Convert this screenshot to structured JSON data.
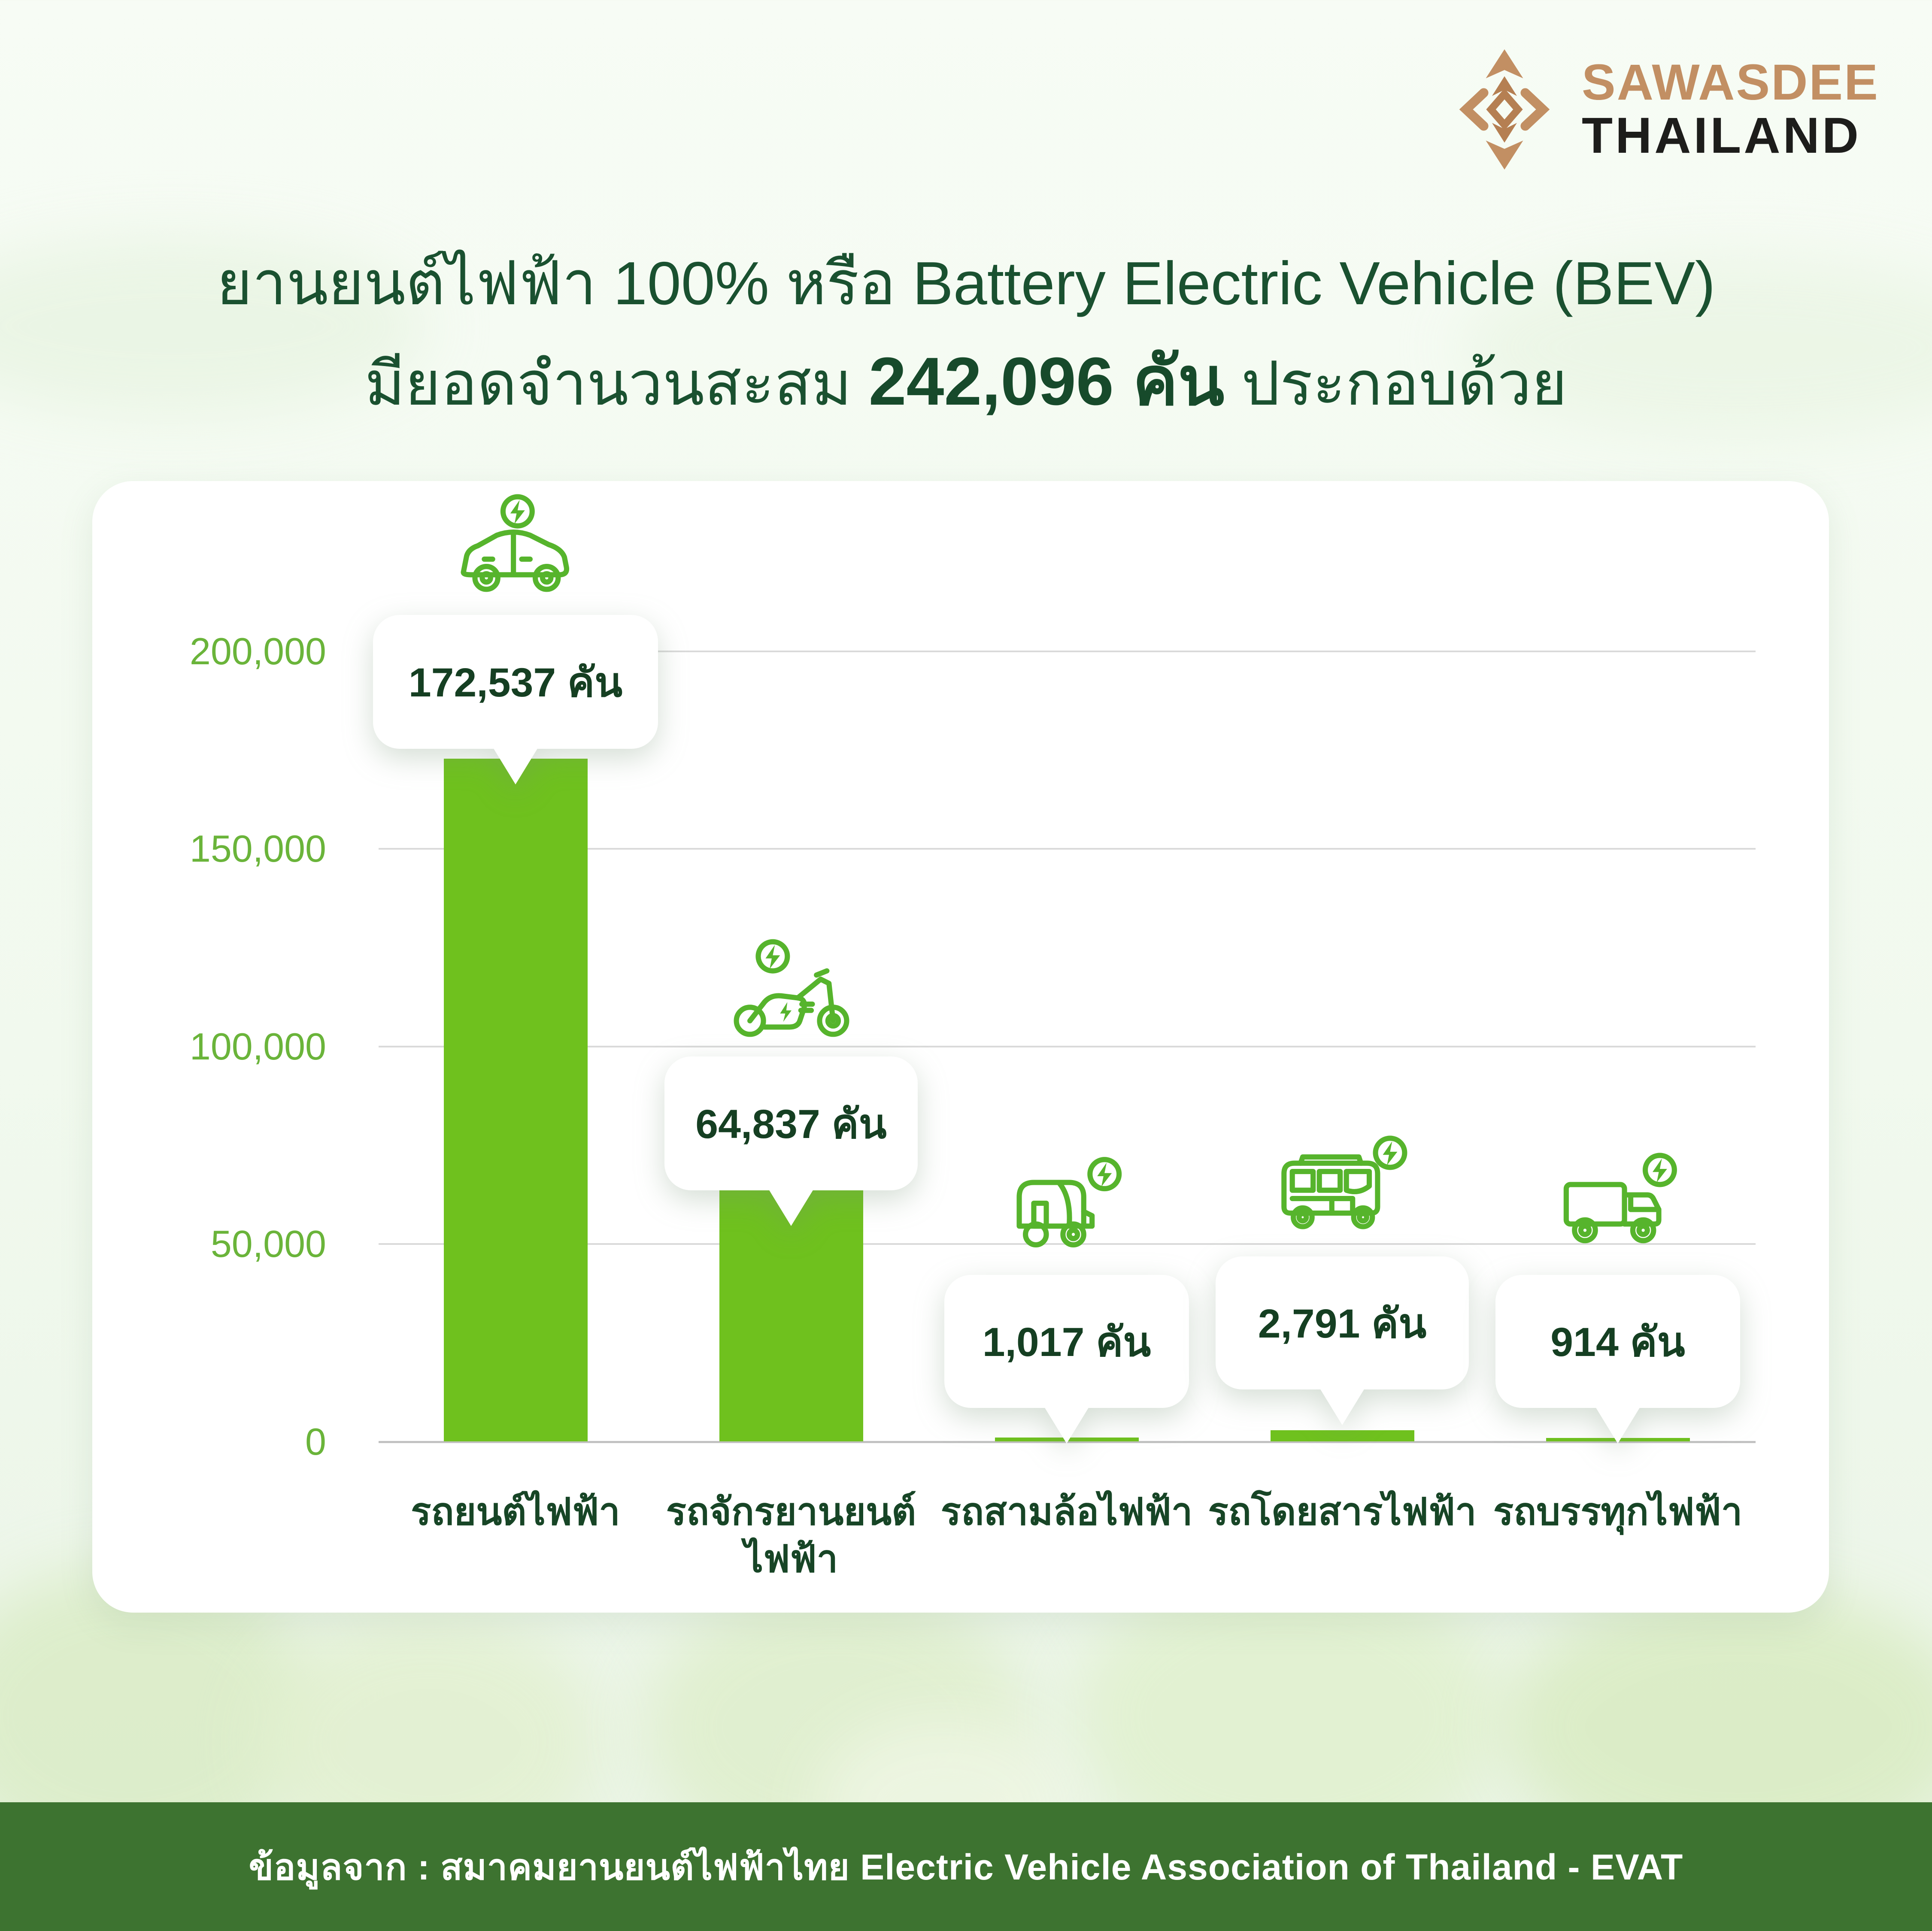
{
  "logo": {
    "brand_top": "SAWASDEE",
    "brand_bottom": "THAILAND"
  },
  "title": {
    "line1": "ยานยนต์ไฟฟ้า 100% หรือ Battery Electric Vehicle (BEV)",
    "line2_prefix": "มียอดจำนวนสะสม ",
    "line2_highlight": "242,096 คัน",
    "line2_suffix": " ประกอบด้วย"
  },
  "footer": {
    "source": "ข้อมูลจาก : สมาคมยานยนต์ไฟฟ้าไทย Electric Vehicle Association of Thailand - EVAT"
  },
  "colors": {
    "bar_green": "#6fc11e",
    "icon_green": "#56b42c",
    "axis_label_green": "#6ab43a",
    "dark_text_green": "#174526",
    "title_green": "#1a5130",
    "footer_green": "#3d7330",
    "logo_copper": "#c28f63",
    "gridline_gray": "#dadada"
  },
  "chart_data": {
    "type": "bar",
    "title": "ยอดสะสมยานยนต์ไฟฟ้า BEV รวม 242,096 คัน",
    "categories": [
      "รถยนต์ไฟฟ้า",
      "รถจักรยานยนต์ไฟฟ้า",
      "รถสามล้อไฟฟ้า",
      "รถโดยสารไฟฟ้า",
      "รถบรรทุกไฟฟ้า"
    ],
    "categories_display": [
      [
        "รถยนต์ไฟฟ้า"
      ],
      [
        "รถจักรยานยนต์",
        "ไฟฟ้า"
      ],
      [
        "รถสามล้อไฟฟ้า"
      ],
      [
        "รถโดยสารไฟฟ้า"
      ],
      [
        "รถบรรทุกไฟฟ้า"
      ]
    ],
    "values": [
      172537,
      64837,
      1017,
      2791,
      914
    ],
    "value_labels": [
      "172,537 คัน",
      "64,837 คัน",
      "1,017 คัน",
      "2,791 คัน",
      "914 คัน"
    ],
    "icons": [
      "ev-car-icon",
      "ev-motorcycle-icon",
      "ev-tuktuk-icon",
      "ev-bus-icon",
      "ev-truck-icon"
    ],
    "y_ticks": [
      "200,000",
      "150,000",
      "100,000",
      "50,000",
      "0"
    ],
    "ylim": [
      0,
      200000
    ],
    "grid": true,
    "legend": "none",
    "total": 242096
  }
}
